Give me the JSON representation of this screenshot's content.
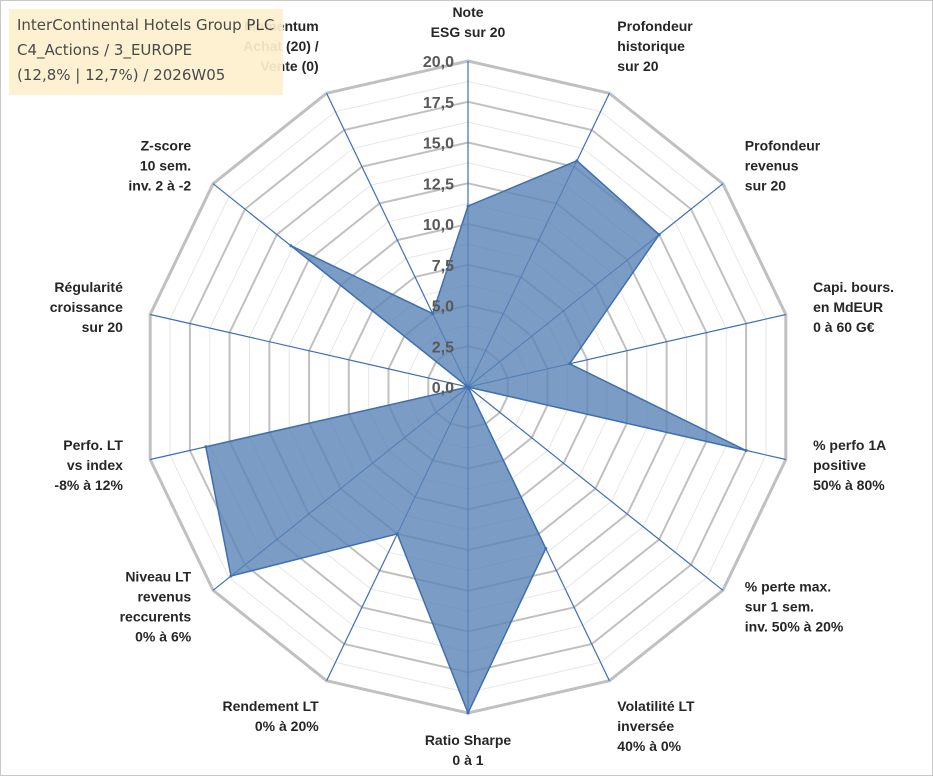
{
  "header": {
    "company": "InterContinental Hotels Group PLC",
    "category": "C4_Actions / 3_EUROPE",
    "stats": "(12,8% | 12,7%) / 2026W05"
  },
  "colors": {
    "fill": "#5a84b6",
    "stroke": "#3f6fb0",
    "grid": "#c0c0c0",
    "axis": "#3e6eb8",
    "title_bg": "#fdf0cf"
  },
  "chart_data": {
    "type": "radar",
    "title": "",
    "rmin": 0,
    "rmax": 20,
    "ticks": [
      "0,0",
      "2,5",
      "5,0",
      "7,5",
      "10,0",
      "12,5",
      "15,0",
      "17,5",
      "20,0"
    ],
    "categories": [
      [
        "Note",
        "ESG sur 20"
      ],
      [
        "Profondeur",
        "historique",
        "sur 20"
      ],
      [
        "Profondeur",
        "revenus",
        "sur 20"
      ],
      [
        "Capi. bours.",
        "en MdEUR",
        "0 à 60 G€"
      ],
      [
        "% perfo 1A",
        "positive",
        "50% à 80%"
      ],
      [
        "% perte max.",
        "sur 1 sem.",
        "inv. 50% à 20%"
      ],
      [
        "Volatilité LT",
        "inversée",
        "40% à 0%"
      ],
      [
        "Ratio Sharpe",
        "0 à 1"
      ],
      [
        "Rendement LT",
        "0% à 20%"
      ],
      [
        "Niveau LT",
        "revenus",
        "reccurents",
        "0% à 6%"
      ],
      [
        "Perfo. LT",
        "vs index",
        "-8% à 12%"
      ],
      [
        "Régularité",
        "croissance",
        "sur 20"
      ],
      [
        "Z-score",
        "10 sem.",
        "inv. 2 à -2"
      ],
      [
        "Momentum",
        "Achat (20) /",
        "Vente (0)"
      ]
    ],
    "series": [
      {
        "name": "InterContinental Hotels Group PLC",
        "values": [
          11.1,
          15.4,
          15.0,
          6.4,
          17.5,
          0.0,
          11.0,
          20.0,
          10.0,
          18.6,
          16.5,
          0.0,
          13.9,
          5.0
        ]
      }
    ]
  }
}
